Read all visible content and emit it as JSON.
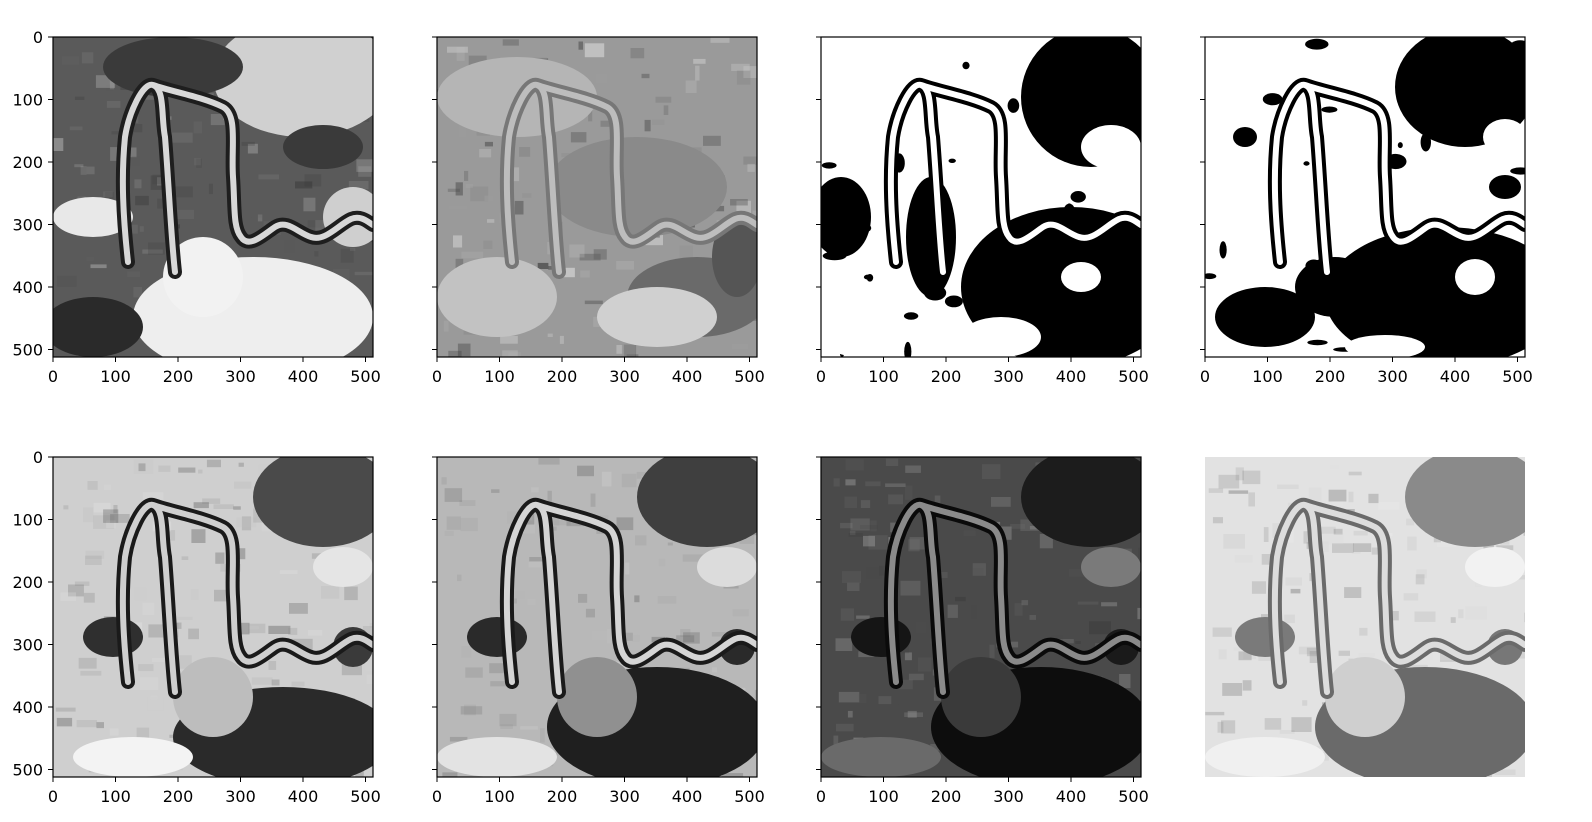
{
  "axes": {
    "x_ticks": [
      "0",
      "100",
      "200",
      "300",
      "400",
      "500"
    ],
    "y_ticks": [
      "0",
      "100",
      "200",
      "300",
      "400",
      "500"
    ],
    "x_tick_values": [
      0,
      100,
      200,
      300,
      400,
      500
    ],
    "y_tick_values": [
      0,
      100,
      200,
      300,
      400,
      500
    ],
    "xlim": [
      0,
      512
    ],
    "ylim": [
      512,
      0
    ]
  },
  "panels": [
    {
      "id": "r1c1",
      "row": 1,
      "col": 1,
      "style": "grayscale-satellite",
      "show_yticklabels": true,
      "show_axes": true
    },
    {
      "id": "r1c2",
      "row": 1,
      "col": 2,
      "style": "texture-gray",
      "show_yticklabels": false,
      "show_axes": true
    },
    {
      "id": "r1c3",
      "row": 1,
      "col": 3,
      "style": "binary-mask",
      "show_yticklabels": false,
      "show_axes": true
    },
    {
      "id": "r1c4",
      "row": 1,
      "col": 4,
      "style": "binary-mask-fine",
      "show_yticklabels": false,
      "show_axes": true
    },
    {
      "id": "r2c1",
      "row": 2,
      "col": 1,
      "style": "bright-gray",
      "show_yticklabels": true,
      "show_axes": true
    },
    {
      "id": "r2c2",
      "row": 2,
      "col": 2,
      "style": "mid-gray",
      "show_yticklabels": false,
      "show_axes": true
    },
    {
      "id": "r2c3",
      "row": 2,
      "col": 3,
      "style": "dark-gray",
      "show_yticklabels": false,
      "show_axes": true
    },
    {
      "id": "r2c4",
      "row": 2,
      "col": 4,
      "style": "light-gray",
      "show_yticklabels": false,
      "show_axes": false
    }
  ],
  "colors": {
    "axis": "#000000",
    "background": "#ffffff"
  }
}
